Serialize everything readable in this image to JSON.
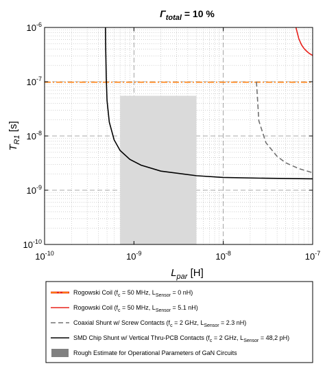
{
  "chart_data": {
    "type": "line",
    "title": {
      "symbol": "Γ",
      "sub": "total",
      "rest": " = 10 %"
    },
    "xlabel": {
      "symbol": "L",
      "sub": "par",
      "unit": " [H]"
    },
    "ylabel": {
      "symbol": "T",
      "sub": "R1",
      "unit": " [s]"
    },
    "xscale": "log",
    "yscale": "log",
    "xlim": [
      1e-10,
      1e-07
    ],
    "ylim": [
      1e-10,
      1e-06
    ],
    "x_ticks": [
      {
        "value": 1e-10,
        "base": "10",
        "exp": "-10"
      },
      {
        "value": 1e-09,
        "base": "10",
        "exp": "-9"
      },
      {
        "value": 1e-08,
        "base": "10",
        "exp": "-8"
      },
      {
        "value": 1e-07,
        "base": "10",
        "exp": "-7"
      }
    ],
    "y_ticks": [
      {
        "value": 1e-10,
        "base": "10",
        "exp": "-10"
      },
      {
        "value": 1e-09,
        "base": "10",
        "exp": "-9"
      },
      {
        "value": 1e-08,
        "base": "10",
        "exp": "-8"
      },
      {
        "value": 1e-07,
        "base": "10",
        "exp": "-7"
      },
      {
        "value": 1e-06,
        "base": "10",
        "exp": "-6"
      }
    ],
    "grid": "major dashed, minor dotted",
    "legend_position": "below plot",
    "shaded_region": {
      "x": [
        7e-10,
        5e-09
      ],
      "y": [
        1e-10,
        5.5e-08
      ],
      "color": "#dadada"
    },
    "series": [
      {
        "color": "#ff7f0e",
        "style": "dash-dot",
        "x": [
          1e-10,
          1e-07
        ],
        "y": [
          9.8e-08,
          9.8e-08
        ]
      },
      {
        "color": "#e8201a",
        "style": "solid",
        "x": [
          6.5e-08,
          7e-08,
          7.5e-08,
          8e-08,
          8.5e-08,
          9e-08,
          9.5e-08,
          1e-07
        ],
        "y": [
          1e-06,
          6.2e-07,
          4.8e-07,
          4.1e-07,
          3.7e-07,
          3.4e-07,
          3.2e-07,
          3.05e-07
        ]
      },
      {
        "color": "#707070",
        "style": "dashed",
        "x": [
          2.35e-08,
          2.5e-08,
          3e-08,
          4e-08,
          5e-08,
          7e-08,
          1e-07
        ],
        "y": [
          1e-07,
          1.9e-08,
          7.5e-09,
          4.2e-09,
          3.2e-09,
          2.5e-09,
          2.1e-09
        ]
      },
      {
        "color": "#000000",
        "style": "solid",
        "x": [
          4.8e-10,
          4.82e-10,
          4.9e-10,
          5e-10,
          5.3e-10,
          6e-10,
          7e-10,
          9e-10,
          1.2e-09,
          2e-09,
          5e-09,
          1e-08,
          3e-08,
          1e-07
        ],
        "y": [
          1e-06,
          5e-07,
          1.2e-07,
          4.5e-08,
          1.8e-08,
          8.5e-09,
          5.4e-09,
          3.7e-09,
          2.9e-09,
          2.25e-09,
          1.85e-09,
          1.72e-09,
          1.66e-09,
          1.62e-09
        ]
      }
    ],
    "legend": [
      {
        "kind": "line",
        "color": "#e8201a",
        "color2": "#ff7f0e",
        "style": "dash-dot",
        "parts": [
          "Rogowski Coil (f",
          "c",
          " = 50 MHz, L",
          "Sensor",
          " = 0 nH)"
        ]
      },
      {
        "kind": "line",
        "color": "#e8201a",
        "style": "solid",
        "parts": [
          "Rogowski Coil (f",
          "c",
          " = 50 MHz, L",
          "Sensor",
          " = 5.1 nH)"
        ]
      },
      {
        "kind": "line",
        "color": "#707070",
        "style": "dashed",
        "parts": [
          "Coaxial Shunt w/ Screw Contacts (f",
          "c",
          " = 2 GHz, L",
          "Sensor",
          " = 2.3 nH)"
        ]
      },
      {
        "kind": "line",
        "color": "#000000",
        "style": "solid",
        "parts": [
          "SMD Chip Shunt w/ Vertical Thru-PCB Contacts (f",
          "c",
          " = 2 GHz, L",
          "Sensor",
          " = 48,2 pH)"
        ]
      },
      {
        "kind": "patch",
        "color": "#808080",
        "parts": [
          "Rough Estimate for Operational Parameters of GaN Circuits"
        ]
      }
    ]
  }
}
